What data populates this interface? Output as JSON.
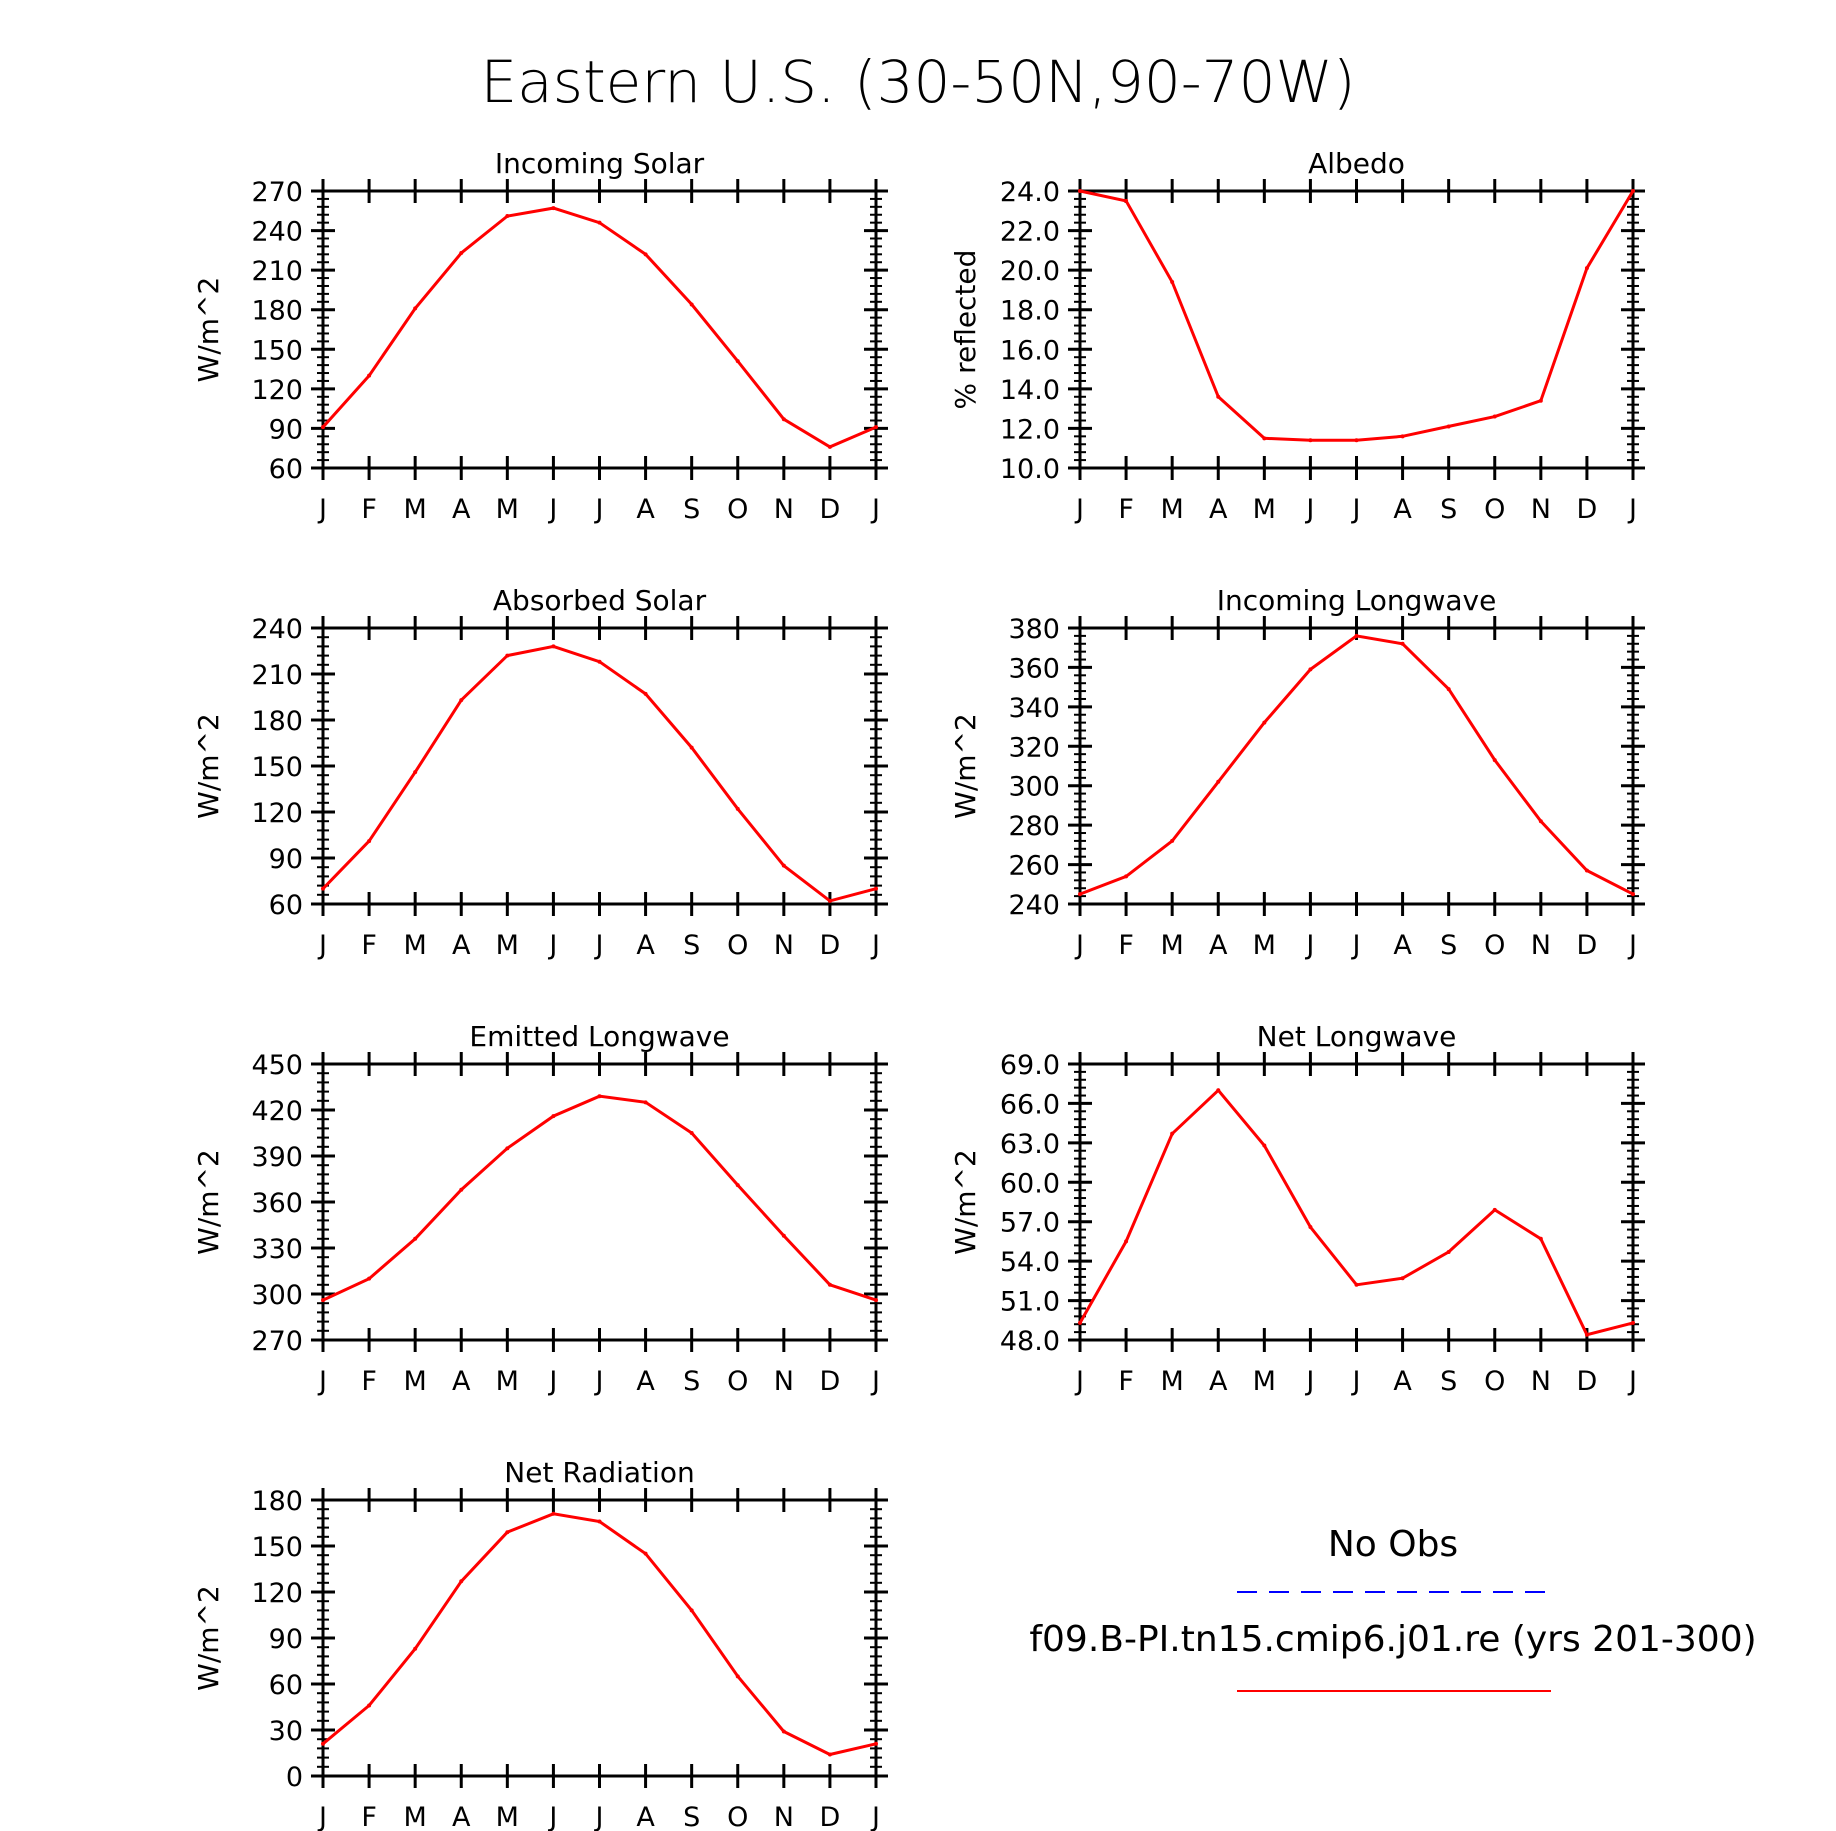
{
  "figure": {
    "title": "Eastern U.S. (30-50N,90-70W)"
  },
  "months": [
    "J",
    "F",
    "M",
    "A",
    "M",
    "J",
    "J",
    "A",
    "S",
    "O",
    "N",
    "D",
    "J"
  ],
  "colors": {
    "model": "#ff0000",
    "obs": "#0000ff",
    "axis": "#000000"
  },
  "legend": {
    "obs_label": "No Obs",
    "model_label": "f09.B-PI.tn15.cmip6.j01.re (yrs 201-300)"
  },
  "chart_data": [
    {
      "id": "incoming-solar",
      "type": "line",
      "title": "Incoming Solar",
      "ylabel": "W/m^2",
      "ylim": [
        60,
        270
      ],
      "yticks": [
        "270",
        "240",
        "210",
        "180",
        "150",
        "120",
        "90",
        "60"
      ],
      "values": [
        91,
        130,
        181,
        223,
        251,
        257,
        246,
        222,
        184,
        141,
        97,
        76,
        91
      ]
    },
    {
      "id": "albedo",
      "type": "line",
      "title": "Albedo",
      "ylabel": "% reflected",
      "ylim": [
        10,
        24
      ],
      "yticks": [
        "24.0",
        "22.0",
        "20.0",
        "18.0",
        "16.0",
        "14.0",
        "12.0",
        "10.0"
      ],
      "values": [
        24.0,
        23.5,
        19.4,
        13.6,
        11.5,
        11.4,
        11.4,
        11.6,
        12.1,
        12.6,
        13.4,
        20.1,
        24.0
      ]
    },
    {
      "id": "absorbed-solar",
      "type": "line",
      "title": "Absorbed Solar",
      "ylabel": "W/m^2",
      "ylim": [
        60,
        240
      ],
      "yticks": [
        "240",
        "210",
        "180",
        "150",
        "120",
        "90",
        "60"
      ],
      "values": [
        70,
        101,
        146,
        193,
        222,
        228,
        218,
        197,
        162,
        122,
        85,
        62,
        70
      ]
    },
    {
      "id": "incoming-longwave",
      "type": "line",
      "title": "Incoming Longwave",
      "ylabel": "W/m^2",
      "ylim": [
        240,
        380
      ],
      "yticks": [
        "380",
        "360",
        "340",
        "320",
        "300",
        "280",
        "260",
        "240"
      ],
      "values": [
        245,
        254,
        272,
        302,
        332,
        359,
        376,
        372,
        349,
        313,
        282,
        257,
        245
      ]
    },
    {
      "id": "emitted-longwave",
      "type": "line",
      "title": "Emitted Longwave",
      "ylabel": "W/m^2",
      "ylim": [
        270,
        450
      ],
      "yticks": [
        "450",
        "420",
        "390",
        "360",
        "330",
        "300",
        "270"
      ],
      "values": [
        296,
        310,
        336,
        368,
        395,
        416,
        429,
        425,
        405,
        371,
        338,
        306,
        296
      ]
    },
    {
      "id": "net-longwave",
      "type": "line",
      "title": "Net Longwave",
      "ylabel": "W/m^2",
      "ylim": [
        48,
        69
      ],
      "yticks": [
        "69.0",
        "66.0",
        "63.0",
        "60.0",
        "57.0",
        "54.0",
        "51.0",
        "48.0"
      ],
      "values": [
        49.3,
        55.5,
        63.7,
        67.0,
        62.8,
        56.6,
        52.2,
        52.7,
        54.7,
        57.9,
        55.7,
        48.4,
        49.3
      ]
    },
    {
      "id": "net-radiation",
      "type": "line",
      "title": "Net Radiation",
      "ylabel": "W/m^2",
      "ylim": [
        0,
        180
      ],
      "yticks": [
        "180",
        "150",
        "120",
        "90",
        "60",
        "30",
        "0"
      ],
      "values": [
        21,
        46,
        83,
        127,
        159,
        171,
        166,
        145,
        108,
        65,
        29,
        14,
        21
      ]
    }
  ]
}
